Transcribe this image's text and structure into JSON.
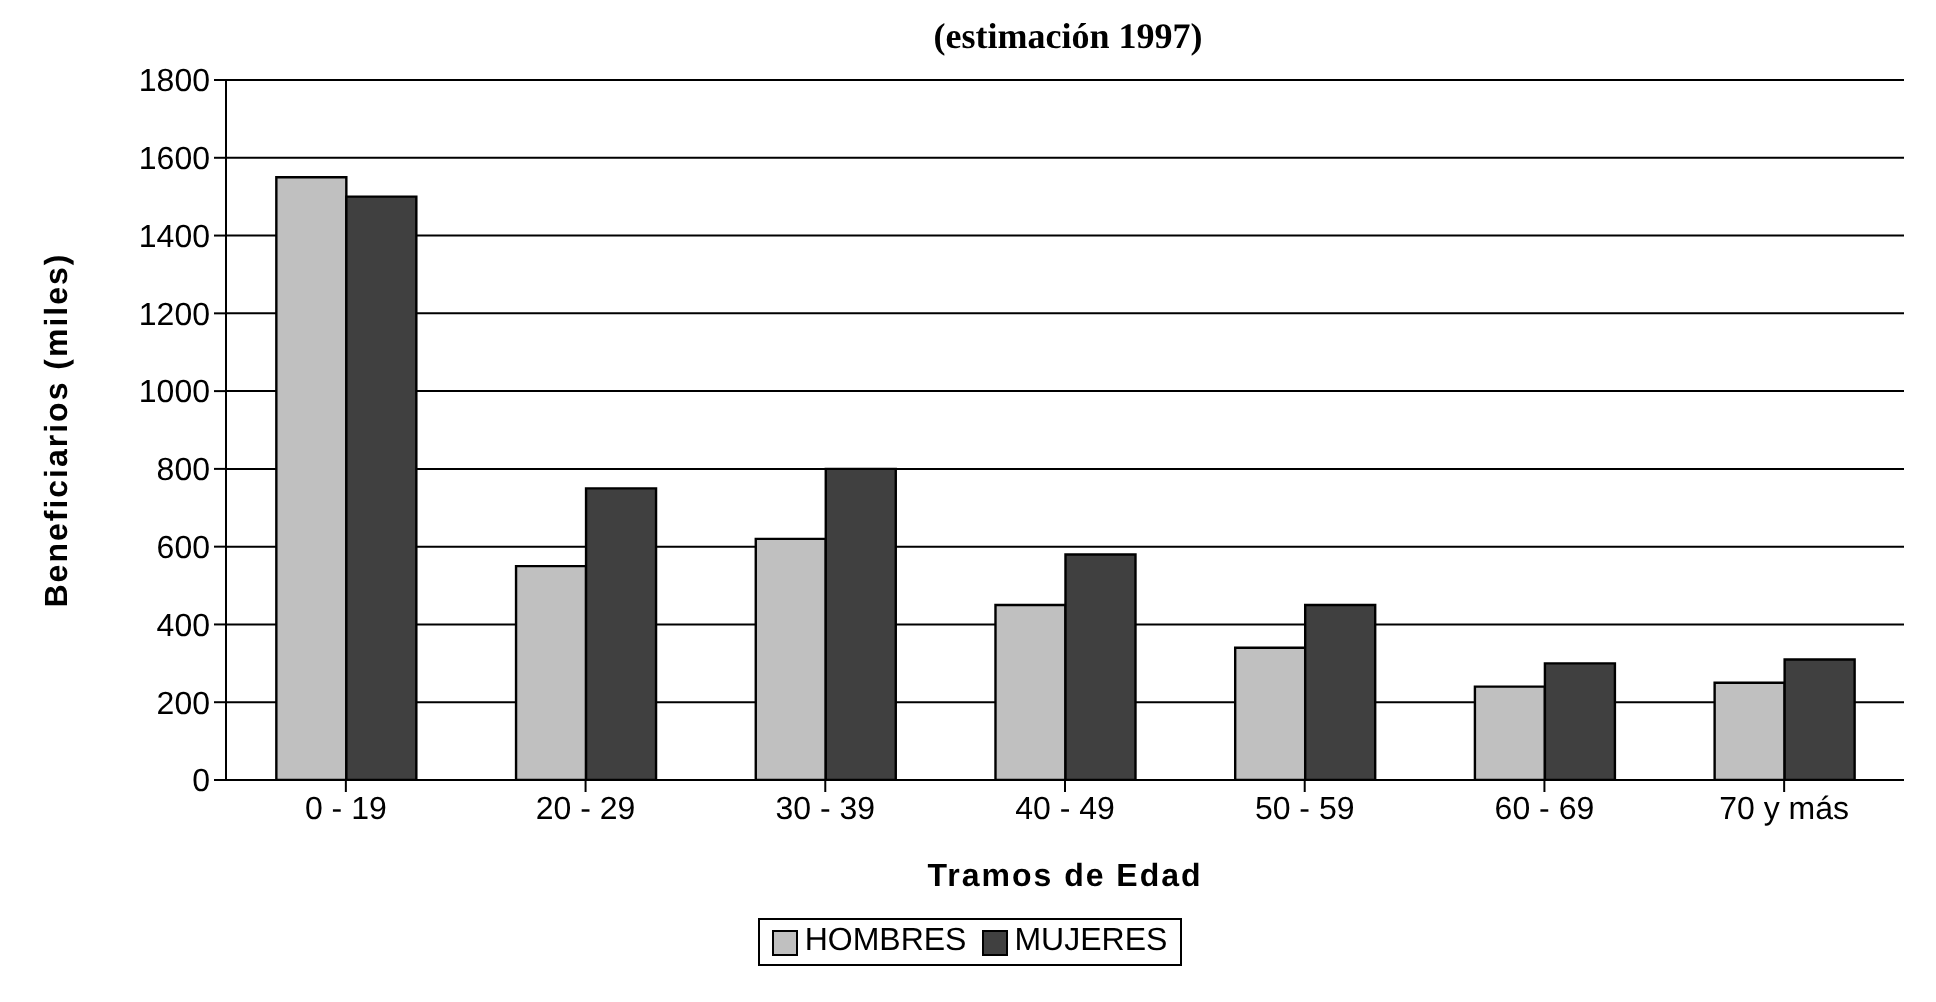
{
  "chart_data": {
    "type": "bar",
    "title": "(estimación 1997)",
    "xlabel": "Tramos de Edad",
    "ylabel": "Beneficiarios (miles)",
    "categories": [
      "0 - 19",
      "20 - 29",
      "30 - 39",
      "40 - 49",
      "50 - 59",
      "60 - 69",
      "70 y más"
    ],
    "series": [
      {
        "name": "HOMBRES",
        "color": "#c0c0c0",
        "values": [
          1550,
          550,
          620,
          450,
          340,
          240,
          250
        ]
      },
      {
        "name": "MUJERES",
        "color": "#404040",
        "values": [
          1500,
          750,
          800,
          580,
          450,
          300,
          310
        ]
      }
    ],
    "ylim": [
      0,
      1800
    ],
    "yticks": [
      0,
      200,
      400,
      600,
      800,
      1000,
      1200,
      1400,
      1600,
      1800
    ],
    "grid": "y",
    "legend": "bottom"
  }
}
